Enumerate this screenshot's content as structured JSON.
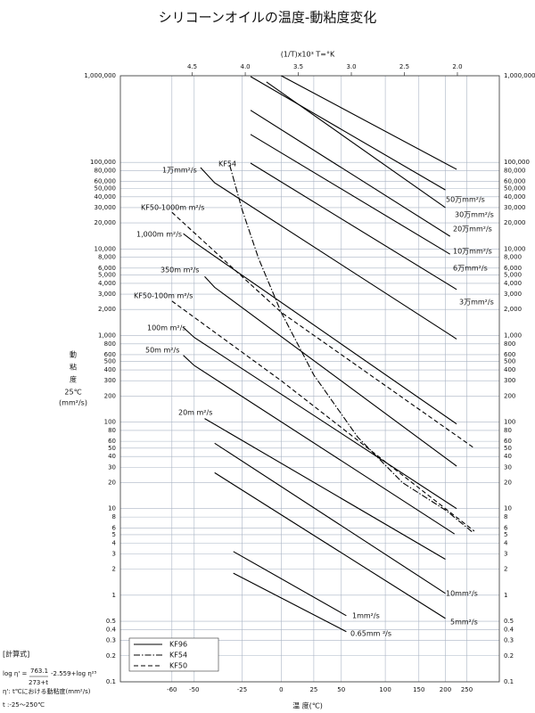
{
  "chart_data": {
    "type": "line",
    "title": "シリコーンオイルの温度-動粘度変化",
    "x2label": "(1/T)x10³  T=°K",
    "xlabel": "温 度(℃)",
    "ylabel": [
      "動",
      "粘",
      "度",
      "25℃",
      "(mm²/s)"
    ],
    "xscale": "reciprocal-kelvin",
    "yscale": "log",
    "grid": true,
    "xlim": [
      -80,
      350
    ],
    "ylim": [
      0.1,
      1000000
    ],
    "xticks": [
      -60,
      -50,
      -25,
      0,
      25,
      50,
      100,
      150,
      200,
      250
    ],
    "x2ticks": [
      4.5,
      {
        "value": 4,
        "label": "4.0"
      },
      3.5,
      {
        "value": 3,
        "label": "3.0"
      },
      2.5,
      {
        "value": 2,
        "label": "2.0"
      }
    ],
    "yticks": [
      {
        "value": 1000000,
        "label": "1,000,000"
      },
      {
        "value": 100000,
        "label": "100,000"
      },
      {
        "value": 80000,
        "label": "80,000"
      },
      {
        "value": 60000,
        "label": "60,000"
      },
      {
        "value": 50000,
        "label": "50,000"
      },
      {
        "value": 40000,
        "label": "40,000"
      },
      {
        "value": 30000,
        "label": "30,000"
      },
      {
        "value": 20000,
        "label": "20,000"
      },
      {
        "value": 10000,
        "label": "10,000"
      },
      {
        "value": 8000,
        "label": "8,000"
      },
      {
        "value": 6000,
        "label": "6,000"
      },
      {
        "value": 5000,
        "label": "5,000"
      },
      {
        "value": 4000,
        "label": "4,000"
      },
      {
        "value": 3000,
        "label": "3,000"
      },
      {
        "value": 2000,
        "label": "2,000"
      },
      {
        "value": 1000,
        "label": "1,000"
      },
      800,
      600,
      500,
      400,
      300,
      200,
      100,
      80,
      60,
      50,
      40,
      30,
      20,
      10,
      8,
      6,
      5,
      4,
      3,
      2,
      1,
      0.5,
      0.4,
      0.3,
      0.2,
      0.1
    ],
    "series": [
      {
        "name": "KF96",
        "color": "#000000",
        "dash": "solid",
        "lines": [
          {
            "label": "50万mm²/s",
            "x": [
              0,
              225
            ],
            "values": [
              1000000,
              83000
            ]
          },
          {
            "label": "30万mm²/s",
            "x": [
              -20,
              200
            ],
            "values": [
              980000,
              48000
            ]
          },
          {
            "label": "20万mm²/s",
            "x": [
              -10,
              200
            ],
            "values": [
              850000,
              30000
            ]
          },
          {
            "label": "10万mm²/s",
            "x": [
              -20,
              210
            ],
            "values": [
              400000,
              14000
            ]
          },
          {
            "label": "6万mm²/s",
            "x": [
              -20,
              210
            ],
            "values": [
              210000,
              8700
            ]
          },
          {
            "label": "3万mm²/s",
            "x": [
              -20,
              225
            ],
            "values": [
              98000,
              3400
            ]
          },
          {
            "label": "1万mm²/s",
            "x": [
              -47,
              -40,
              225
            ],
            "values": [
              87000,
              58000,
              910
            ]
          },
          {
            "label": "1,000m m²/s",
            "x": [
              -55,
              -50,
              225
            ],
            "values": [
              15000,
              12000,
              95
            ]
          },
          {
            "label": "350m m²/s",
            "x": [
              -45,
              -40,
              225
            ],
            "values": [
              4800,
              3600,
              31
            ]
          },
          {
            "label": "100m m²/s",
            "x": [
              -55,
              -50,
              225
            ],
            "values": [
              1240,
              950,
              10
            ]
          },
          {
            "label": "50m m²/s",
            "x": [
              -55,
              -50,
              220
            ],
            "values": [
              590,
              450,
              5.1
            ]
          },
          {
            "label": "20m m²/s",
            "x": [
              -45,
              200
            ],
            "values": [
              110,
              2.6
            ]
          },
          {
            "label": "10mm²/s",
            "x": [
              -40,
              200
            ],
            "values": [
              57,
              1.05
            ]
          },
          {
            "label": "5mm²/s",
            "x": [
              -40,
              200
            ],
            "values": [
              26,
              0.54
            ]
          },
          {
            "label": "1mm²/s",
            "x": [
              -30,
              55
            ],
            "values": [
              3.2,
              0.58
            ]
          },
          {
            "label": "0.65mm ²/s",
            "x": [
              -30,
              55
            ],
            "values": [
              1.8,
              0.38
            ]
          }
        ]
      },
      {
        "name": "KF54",
        "color": "#000000",
        "dash": "dash-dot",
        "lines": [
          {
            "label": "KF54",
            "x": [
              -32,
              -25,
              -15,
              0,
              25,
              67,
              124,
              202,
              264
            ],
            "values": [
              93000,
              28400,
              7700,
              1850,
              350,
              67,
              20,
              9.5,
              5.4
            ]
          }
        ]
      },
      {
        "name": "KF50",
        "color": "#000000",
        "dash": "dashed",
        "lines": [
          {
            "label": "KF50-1000m  m²/s",
            "x": [
              -60,
              0,
              270
            ],
            "values": [
              26500,
              1850,
              50
            ]
          },
          {
            "label": "KF50-100m  m²/s",
            "x": [
              -60,
              0,
              270
            ],
            "values": [
              2500,
              300,
              5.5
            ]
          }
        ]
      }
    ],
    "notes": {
      "heading": "[計算式]",
      "formula_left": "log η' =",
      "numerator": "763.1",
      "denominator": "273+t",
      "formula_right": "-2.559+log η²⁵",
      "definition": "η': t℃における動粘度(mm²/s)",
      "range": "t :-25〜250℃"
    }
  }
}
